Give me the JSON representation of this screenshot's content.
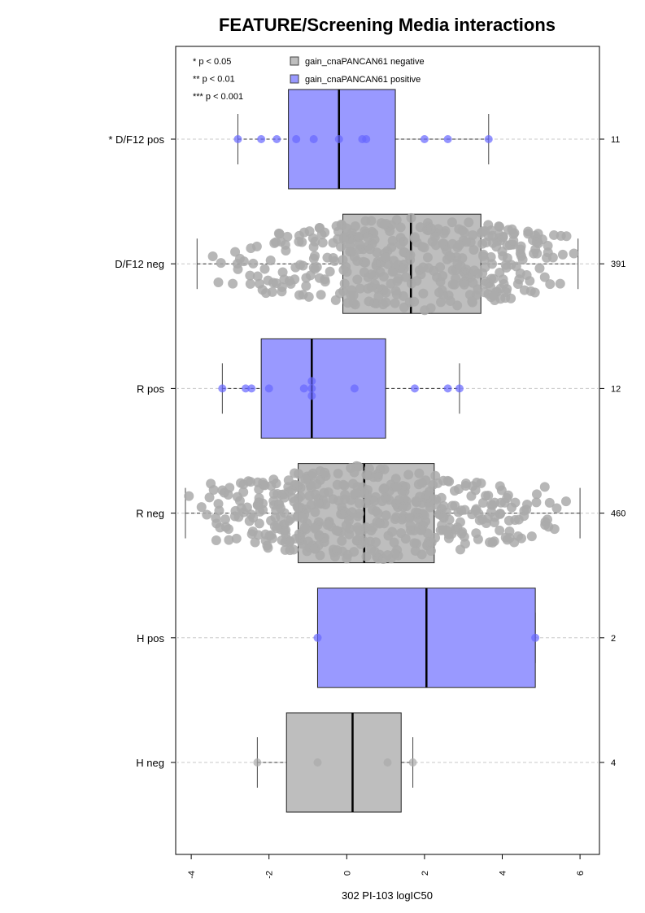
{
  "chart_data": {
    "type": "boxplot",
    "title": "FEATURE/Screening Media interactions",
    "xlabel": "302 PI-103 logIC50",
    "xlim": [
      -4.4,
      6.5
    ],
    "x_ticks": [
      -4,
      -2,
      0,
      2,
      4,
      6
    ],
    "x_tick_labels": [
      "-4",
      "-2",
      "0",
      "2",
      "4",
      "6"
    ],
    "significance_legend": [
      "* p < 0.05",
      "** p < 0.01",
      "*** p < 0.001"
    ],
    "legend": [
      {
        "label": "gain_cnaPANCAN61 negative",
        "color": "#bebebe"
      },
      {
        "label": "gain_cnaPANCAN61 positive",
        "color": "#9999ff"
      }
    ],
    "colors": {
      "negative_box": "#bebebe",
      "positive_box": "#9999ff",
      "negative_point": "#aaaaaa",
      "positive_point": "#6666ff"
    },
    "groups": [
      {
        "label": "* D/F12 pos",
        "n": "11",
        "status": "positive",
        "wmin": -2.8,
        "q1": -1.5,
        "median": -0.2,
        "q3": 1.25,
        "wmax": 3.65,
        "points": [
          -2.8,
          -2.2,
          -1.8,
          -1.3,
          -0.85,
          -0.2,
          0.4,
          0.5,
          2.0,
          2.6,
          3.65
        ]
      },
      {
        "label": "D/F12 neg",
        "n": "391",
        "status": "negative",
        "wmin": -3.85,
        "q1": -0.1,
        "median": 1.65,
        "q3": 3.45,
        "wmax": 5.95,
        "points": []
      },
      {
        "label": "R pos",
        "n": "12",
        "status": "positive",
        "wmin": -3.2,
        "q1": -2.2,
        "median": -0.9,
        "q3": 1.0,
        "wmax": 2.9,
        "points": [
          -3.2,
          -2.6,
          -2.45,
          -2.0,
          -1.1,
          -0.9,
          -0.9,
          -0.9,
          0.2,
          1.75,
          2.6,
          2.9
        ]
      },
      {
        "label": "R neg",
        "n": "460",
        "status": "negative",
        "wmin": -4.15,
        "q1": -1.25,
        "median": 0.45,
        "q3": 2.25,
        "wmax": 6.0,
        "points": []
      },
      {
        "label": "H pos",
        "n": "2",
        "status": "positive",
        "wmin": -0.75,
        "q1": -0.75,
        "median": 2.05,
        "q3": 4.85,
        "wmax": 4.85,
        "points": [
          -0.75,
          4.85
        ]
      },
      {
        "label": "H neg",
        "n": "4",
        "status": "negative",
        "wmin": -2.3,
        "q1": -1.55,
        "median": 0.15,
        "q3": 1.4,
        "wmax": 1.7,
        "points": [
          -2.3,
          -0.75,
          1.05,
          1.7
        ]
      }
    ]
  }
}
